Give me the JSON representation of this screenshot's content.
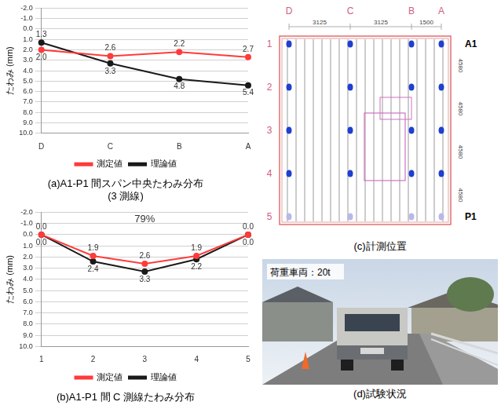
{
  "chart_data": [
    {
      "type": "line",
      "title": [
        "(a)A1-P1 間スパン中央たわみ分布",
        "(3 測線)"
      ],
      "y_label": "たわみ (mm)",
      "categories": [
        "D",
        "C",
        "B",
        "A"
      ],
      "series": [
        {
          "name": "測定値",
          "color": "#ff3b3b",
          "marker": "circle",
          "values": [
            2.0,
            2.6,
            2.2,
            2.7
          ],
          "value_labels": [
            "2.0",
            "2.6",
            "2.2",
            "2.7"
          ]
        },
        {
          "name": "理論値",
          "color": "#1a1a1a",
          "marker": "circle",
          "values": [
            1.3,
            3.3,
            4.8,
            5.4
          ],
          "value_labels": [
            "1.3",
            "3.3",
            "4.8",
            "5.4"
          ]
        }
      ],
      "ylim": [
        10,
        -2
      ],
      "yticks": [
        {
          "value": -2,
          "label": "-2.0"
        },
        {
          "value": -1,
          "label": "-1.0"
        },
        {
          "value": 0,
          "label": "0.0"
        },
        {
          "value": 1,
          "label": "1.0"
        },
        {
          "value": 2,
          "label": "2.0"
        },
        {
          "value": 3,
          "label": "3.0"
        },
        {
          "value": 4,
          "label": "4.0"
        },
        {
          "value": 5,
          "label": "5.0"
        },
        {
          "value": 6,
          "label": "6.0"
        },
        {
          "value": 7,
          "label": "7.0"
        },
        {
          "value": 8,
          "label": "8.0"
        },
        {
          "value": 9,
          "label": "9.0"
        },
        {
          "value": 10,
          "label": "10.0"
        }
      ],
      "grid": true,
      "legend": "bottom",
      "data_labels": true
    },
    {
      "type": "line",
      "title": [
        "(b)A1-P1 間 C 測線たわみ分布"
      ],
      "y_label": "たわみ (mm)",
      "annotations": [
        "79%"
      ],
      "categories": [
        "1",
        "2",
        "3",
        "4",
        "5"
      ],
      "series": [
        {
          "name": "測定値",
          "color": "#ff3b3b",
          "marker": "circle",
          "values": [
            0.0,
            1.9,
            2.6,
            1.9,
            0.0
          ],
          "value_labels": [
            "0.0",
            "1.9",
            "2.6",
            "1.9",
            "0.0"
          ]
        },
        {
          "name": "理論値",
          "color": "#1a1a1a",
          "marker": "circle",
          "values": [
            0.0,
            2.4,
            3.3,
            2.2,
            0.0
          ],
          "value_labels": [
            "0.0",
            "2.4",
            "3.3",
            "2.2",
            "0.0"
          ]
        }
      ],
      "ylim": [
        10,
        -2
      ],
      "yticks": [
        {
          "value": -2,
          "label": "-2.0"
        },
        {
          "value": -1,
          "label": "-1.0"
        },
        {
          "value": 0,
          "label": "0.0"
        },
        {
          "value": 1,
          "label": "1.0"
        },
        {
          "value": 2,
          "label": "2.0"
        },
        {
          "value": 3,
          "label": "3.0"
        },
        {
          "value": 4,
          "label": "4.0"
        },
        {
          "value": 5,
          "label": "5.0"
        },
        {
          "value": 6,
          "label": "6.0"
        },
        {
          "value": 7,
          "label": "7.0"
        },
        {
          "value": 8,
          "label": "8.0"
        },
        {
          "value": 9,
          "label": "9.0"
        },
        {
          "value": 10,
          "label": "10.0"
        }
      ],
      "grid": true,
      "legend": "bottom",
      "data_labels": true
    }
  ],
  "diagram": {
    "column_labels": [
      "D",
      "C",
      "B",
      "A"
    ],
    "column_spacings": [
      "3125",
      "3125",
      "1500"
    ],
    "row_labels": [
      "1",
      "2",
      "3",
      "4",
      "5"
    ],
    "row_spacings": [
      "4580",
      "4580",
      "4580",
      "4580"
    ],
    "support_labels": [
      "A1",
      "P1"
    ],
    "caption": "(c)計測位置"
  },
  "photo": {
    "label": "荷重車両：20t",
    "caption": "(d)試験状況"
  }
}
